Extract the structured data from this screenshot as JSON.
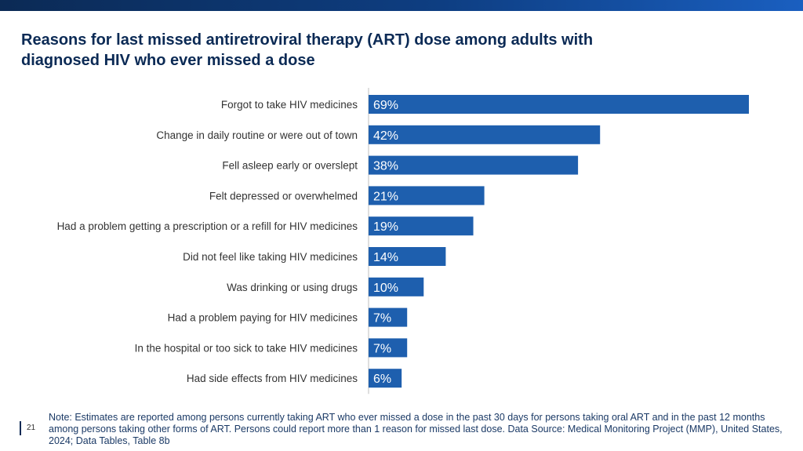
{
  "title": "Reasons for last missed antiretroviral therapy (ART) dose among adults with diagnosed HIV who ever missed a dose",
  "colors": {
    "bar": "#1e5fae",
    "accent": "#0b2a55"
  },
  "page_number": "21",
  "note": "Note: Estimates are reported among persons currently taking ART who ever missed a dose in the past 30 days for persons taking oral ART and in the past 12 months among persons taking other forms of ART. Persons could report more than 1 reason for missed last dose. Data Source: Medical Monitoring Project (MMP), United States, 2024; Data Tables, Table 8b",
  "chart_data": {
    "type": "bar",
    "orientation": "horizontal",
    "categories": [
      "Forgot to take HIV medicines",
      "Change in daily routine or were out of town",
      "Fell asleep early or overslept",
      "Felt depressed or overwhelmed",
      "Had a problem getting a prescription or a refill for HIV medicines",
      "Did not feel like taking HIV medicines",
      "Was drinking or using drugs",
      "Had a problem paying for HIV medicines",
      "In the hospital or too sick to take HIV medicines",
      "Had side effects from HIV medicines"
    ],
    "values": [
      69,
      42,
      38,
      21,
      19,
      14,
      10,
      7,
      7,
      6
    ],
    "value_labels": [
      "69%",
      "42%",
      "38%",
      "21%",
      "19%",
      "14%",
      "10%",
      "7%",
      "7%",
      "6%"
    ],
    "xlim": [
      0,
      69
    ],
    "grid": false,
    "legend": "none"
  }
}
